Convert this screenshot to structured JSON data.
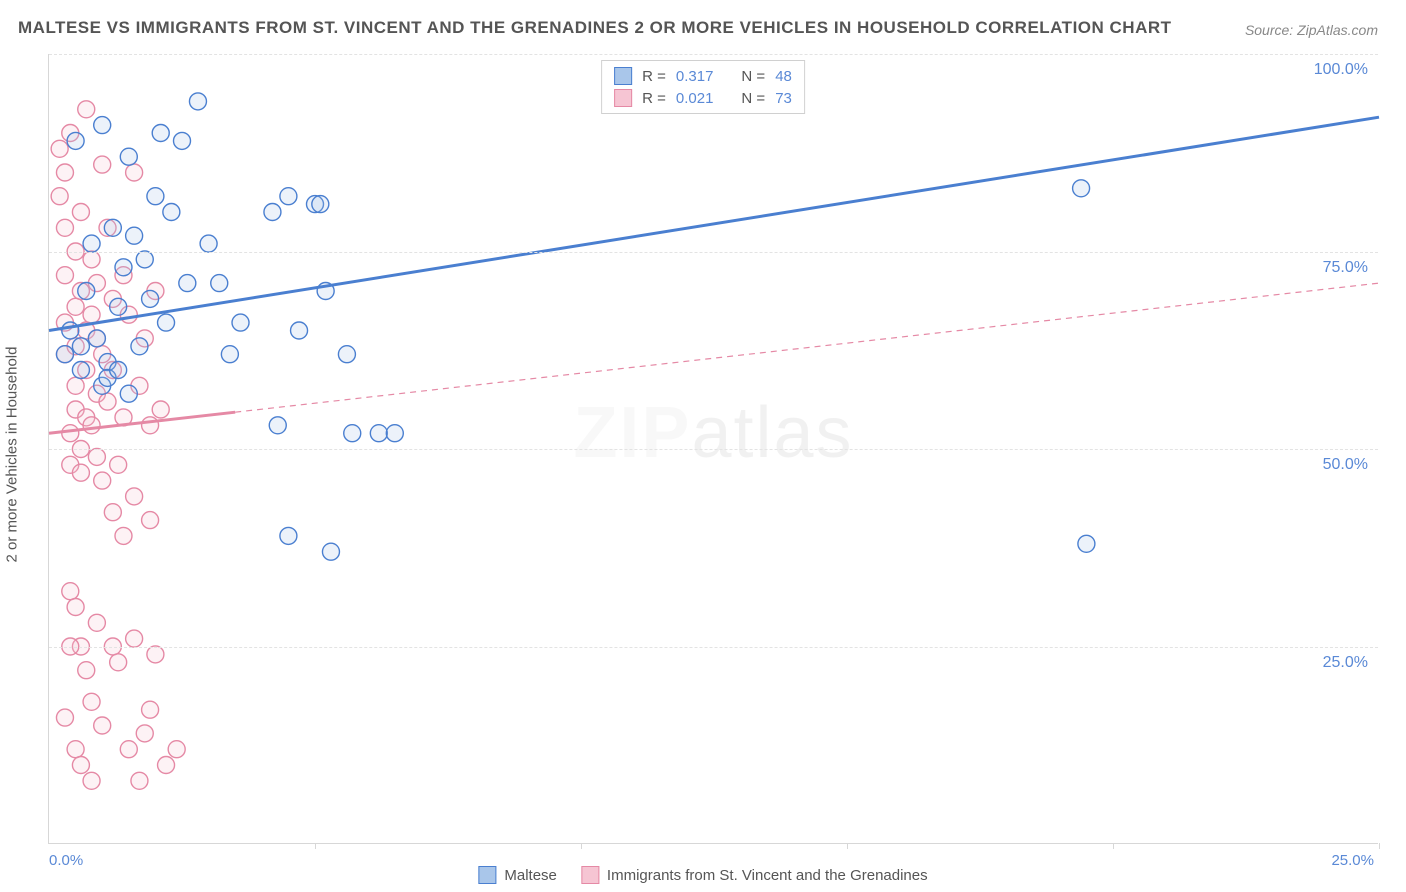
{
  "title": "MALTESE VS IMMIGRANTS FROM ST. VINCENT AND THE GRENADINES 2 OR MORE VEHICLES IN HOUSEHOLD CORRELATION CHART",
  "source_label": "Source: ZipAtlas.com",
  "watermark_bold": "ZIP",
  "watermark_light": "atlas",
  "ylabel": "2 or more Vehicles in Household",
  "chart": {
    "type": "scatter-with-regression",
    "background_color": "#ffffff",
    "grid_color": "#e3e3e3",
    "axis_color": "#d7d7d7",
    "text_color": "#555555",
    "value_color": "#5a89d6",
    "title_fontsize": 17,
    "label_fontsize": 15,
    "tick_fontsize": 16,
    "xlim": [
      0,
      25
    ],
    "ylim": [
      0,
      100
    ],
    "yticks": [
      25,
      50,
      75,
      100
    ],
    "ytick_labels": [
      "25.0%",
      "50.0%",
      "75.0%",
      "100.0%"
    ],
    "xticks": [
      0,
      5,
      10,
      15,
      20,
      25
    ],
    "xtick_labels": {
      "0": "0.0%",
      "25": "25.0%"
    },
    "marker_radius": 8.5,
    "marker_stroke_width": 1.4,
    "marker_fill_opacity": 0.22,
    "trend_line_width_solid": 3,
    "trend_line_width_dashed": 1.2,
    "trend_dash_pattern": "6,5"
  },
  "series": [
    {
      "name": "Maltese",
      "color_stroke": "#4a7fd0",
      "color_fill": "#a9c6ea",
      "trend": {
        "x1": 0,
        "y1": 65,
        "x2": 25,
        "y2": 92,
        "solid_until_x": 25
      },
      "r_label": "R =",
      "r_value": "0.317",
      "n_label": "N =",
      "n_value": "48",
      "points": [
        [
          0.3,
          62
        ],
        [
          0.4,
          65
        ],
        [
          0.5,
          89
        ],
        [
          0.6,
          63
        ],
        [
          0.7,
          70
        ],
        [
          0.8,
          76
        ],
        [
          0.9,
          64
        ],
        [
          1.0,
          91
        ],
        [
          1.1,
          61
        ],
        [
          1.2,
          78
        ],
        [
          1.3,
          68
        ],
        [
          1.4,
          73
        ],
        [
          1.5,
          87
        ],
        [
          1.6,
          77
        ],
        [
          1.7,
          63
        ],
        [
          1.8,
          74
        ],
        [
          1.9,
          69
        ],
        [
          2.0,
          82
        ],
        [
          2.1,
          90
        ],
        [
          2.2,
          66
        ],
        [
          2.3,
          80
        ],
        [
          2.5,
          89
        ],
        [
          2.6,
          71
        ],
        [
          2.8,
          94
        ],
        [
          3.0,
          76
        ],
        [
          3.2,
          71
        ],
        [
          3.4,
          62
        ],
        [
          3.6,
          66
        ],
        [
          4.2,
          80
        ],
        [
          4.3,
          53
        ],
        [
          4.5,
          82
        ],
        [
          4.7,
          65
        ],
        [
          5.0,
          81
        ],
        [
          5.1,
          81
        ],
        [
          5.2,
          70
        ],
        [
          5.6,
          62
        ],
        [
          5.7,
          52
        ],
        [
          4.5,
          39
        ],
        [
          5.3,
          37
        ],
        [
          6.2,
          52
        ],
        [
          6.5,
          52
        ],
        [
          19.4,
          83
        ],
        [
          19.5,
          38
        ],
        [
          0.6,
          60
        ],
        [
          1.0,
          58
        ],
        [
          1.1,
          59
        ],
        [
          1.3,
          60
        ],
        [
          1.5,
          57
        ]
      ]
    },
    {
      "name": "Immigrants from St. Vincent and the Grenadines",
      "color_stroke": "#e589a5",
      "color_fill": "#f6c5d3",
      "trend": {
        "x1": 0,
        "y1": 52,
        "x2": 25,
        "y2": 71,
        "solid_until_x": 3.5
      },
      "r_label": "R =",
      "r_value": "0.021",
      "n_label": "N =",
      "n_value": "73",
      "points": [
        [
          0.2,
          88
        ],
        [
          0.2,
          82
        ],
        [
          0.3,
          85
        ],
        [
          0.3,
          78
        ],
        [
          0.3,
          72
        ],
        [
          0.3,
          66
        ],
        [
          0.3,
          62
        ],
        [
          0.4,
          90
        ],
        [
          0.4,
          52
        ],
        [
          0.4,
          48
        ],
        [
          0.5,
          75
        ],
        [
          0.5,
          68
        ],
        [
          0.5,
          63
        ],
        [
          0.5,
          58
        ],
        [
          0.5,
          55
        ],
        [
          0.6,
          80
        ],
        [
          0.6,
          70
        ],
        [
          0.6,
          50
        ],
        [
          0.6,
          47
        ],
        [
          0.7,
          93
        ],
        [
          0.7,
          65
        ],
        [
          0.7,
          60
        ],
        [
          0.7,
          54
        ],
        [
          0.8,
          74
        ],
        [
          0.8,
          67
        ],
        [
          0.8,
          53
        ],
        [
          0.9,
          71
        ],
        [
          0.9,
          64
        ],
        [
          0.9,
          57
        ],
        [
          0.9,
          49
        ],
        [
          1.0,
          86
        ],
        [
          1.0,
          62
        ],
        [
          1.0,
          46
        ],
        [
          1.1,
          78
        ],
        [
          1.1,
          56
        ],
        [
          1.2,
          69
        ],
        [
          1.2,
          60
        ],
        [
          1.3,
          48
        ],
        [
          1.4,
          72
        ],
        [
          1.4,
          54
        ],
        [
          1.5,
          67
        ],
        [
          1.6,
          85
        ],
        [
          1.7,
          58
        ],
        [
          1.8,
          64
        ],
        [
          1.9,
          53
        ],
        [
          2.0,
          70
        ],
        [
          2.1,
          55
        ],
        [
          0.4,
          32
        ],
        [
          0.5,
          30
        ],
        [
          0.7,
          22
        ],
        [
          0.8,
          18
        ],
        [
          0.6,
          25
        ],
        [
          0.9,
          28
        ],
        [
          1.0,
          15
        ],
        [
          0.4,
          25
        ],
        [
          1.2,
          25
        ],
        [
          1.3,
          23
        ],
        [
          1.5,
          12
        ],
        [
          1.6,
          26
        ],
        [
          1.7,
          8
        ],
        [
          1.8,
          14
        ],
        [
          1.9,
          17
        ],
        [
          2.0,
          24
        ],
        [
          2.2,
          10
        ],
        [
          2.4,
          12
        ],
        [
          1.2,
          42
        ],
        [
          1.4,
          39
        ],
        [
          1.6,
          44
        ],
        [
          1.9,
          41
        ],
        [
          0.3,
          16
        ],
        [
          0.5,
          12
        ],
        [
          0.6,
          10
        ],
        [
          0.8,
          8
        ]
      ]
    }
  ],
  "legend_top": {
    "border_color": "#d0d0d0"
  },
  "legend_bottom": {
    "items": [
      "Maltese",
      "Immigrants from St. Vincent and the Grenadines"
    ]
  }
}
